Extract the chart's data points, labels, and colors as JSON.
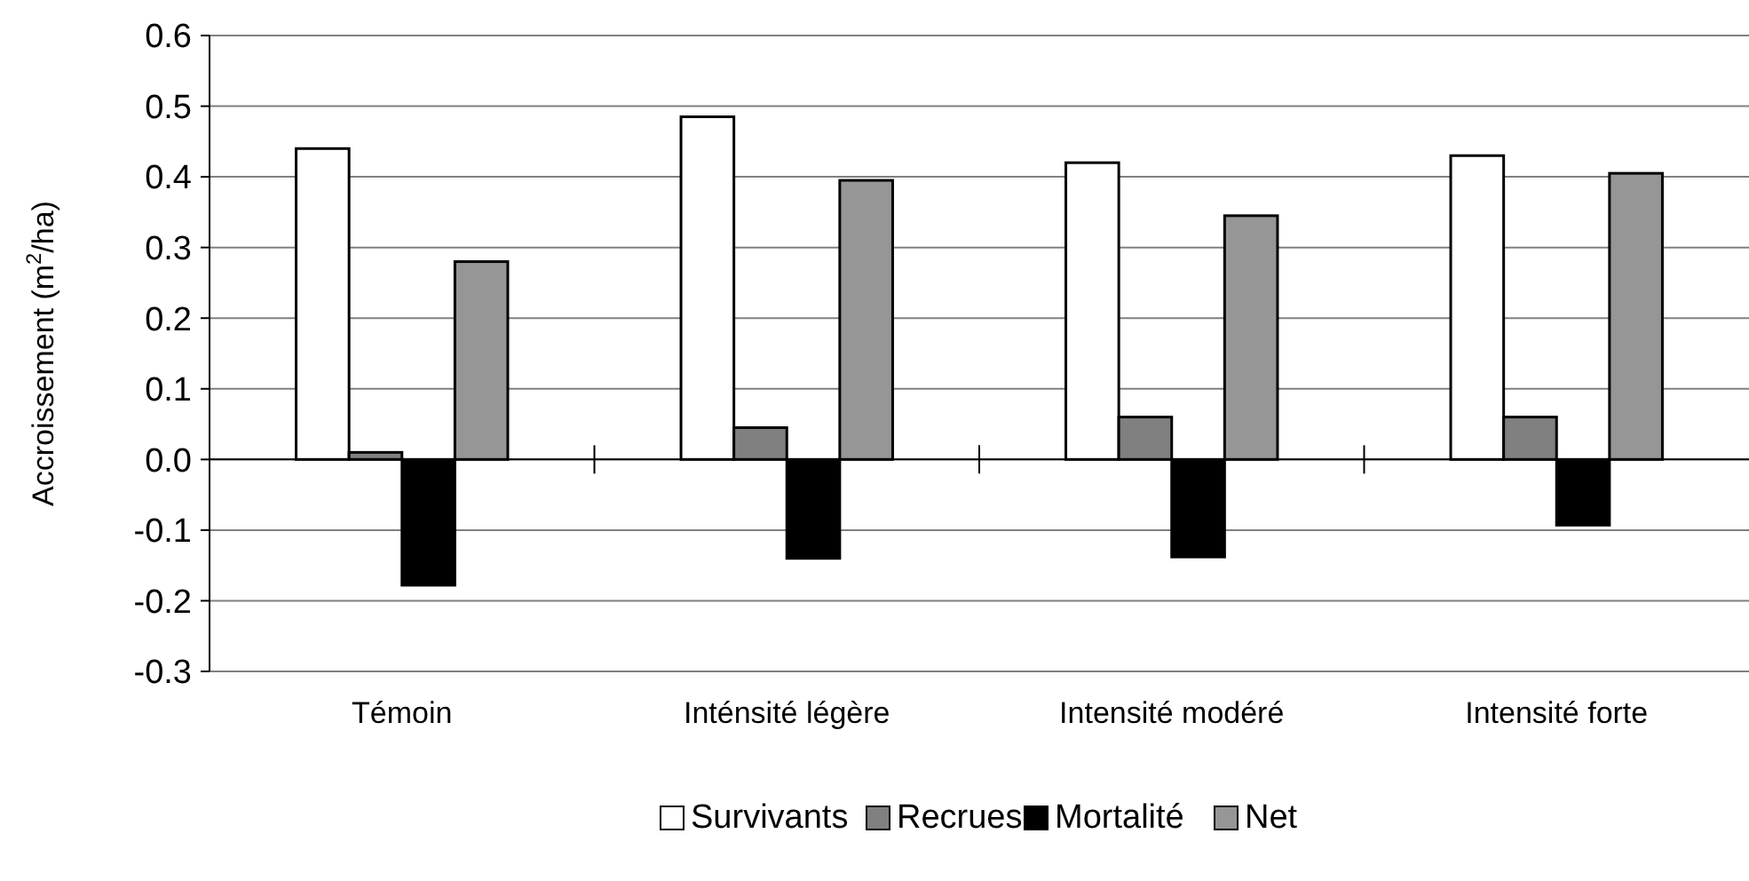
{
  "chart_data": {
    "type": "bar",
    "ylabel": "Accroissement (m$^{2}$/ha)",
    "categories": [
      "Témoin",
      "Inténsité légère",
      "Intensité modéré",
      "Intensité forte"
    ],
    "series": [
      {
        "name": "Survivants",
        "color": "#ffffff",
        "values": [
          0.44,
          0.485,
          0.42,
          0.43
        ]
      },
      {
        "name": "Recrues",
        "color": "#808080",
        "values": [
          0.01,
          0.045,
          0.06,
          0.06
        ]
      },
      {
        "name": "Mortalité",
        "color": "#000000",
        "values": [
          -0.178,
          -0.14,
          -0.138,
          -0.093
        ]
      },
      {
        "name": "Net",
        "color": "#969696",
        "values": [
          0.28,
          0.395,
          0.345,
          0.405
        ]
      }
    ],
    "ylim": [
      -0.3,
      0.6
    ],
    "yticks": [
      {
        "value": -0.3,
        "label": "-0.3"
      },
      {
        "value": -0.2,
        "label": "-0.2"
      },
      {
        "value": -0.1,
        "label": "-0.1"
      },
      {
        "value": 0,
        "label": "0.0"
      },
      {
        "value": 0.1,
        "label": "0.1"
      },
      {
        "value": 0.2,
        "label": "0.2"
      },
      {
        "value": 0.3,
        "label": "0.3"
      },
      {
        "value": 0.4,
        "label": "0.4"
      },
      {
        "value": 0.5,
        "label": "0.5"
      },
      {
        "value": 0.6,
        "label": "0.6"
      }
    ],
    "grid": "y",
    "legend": "bottom"
  }
}
